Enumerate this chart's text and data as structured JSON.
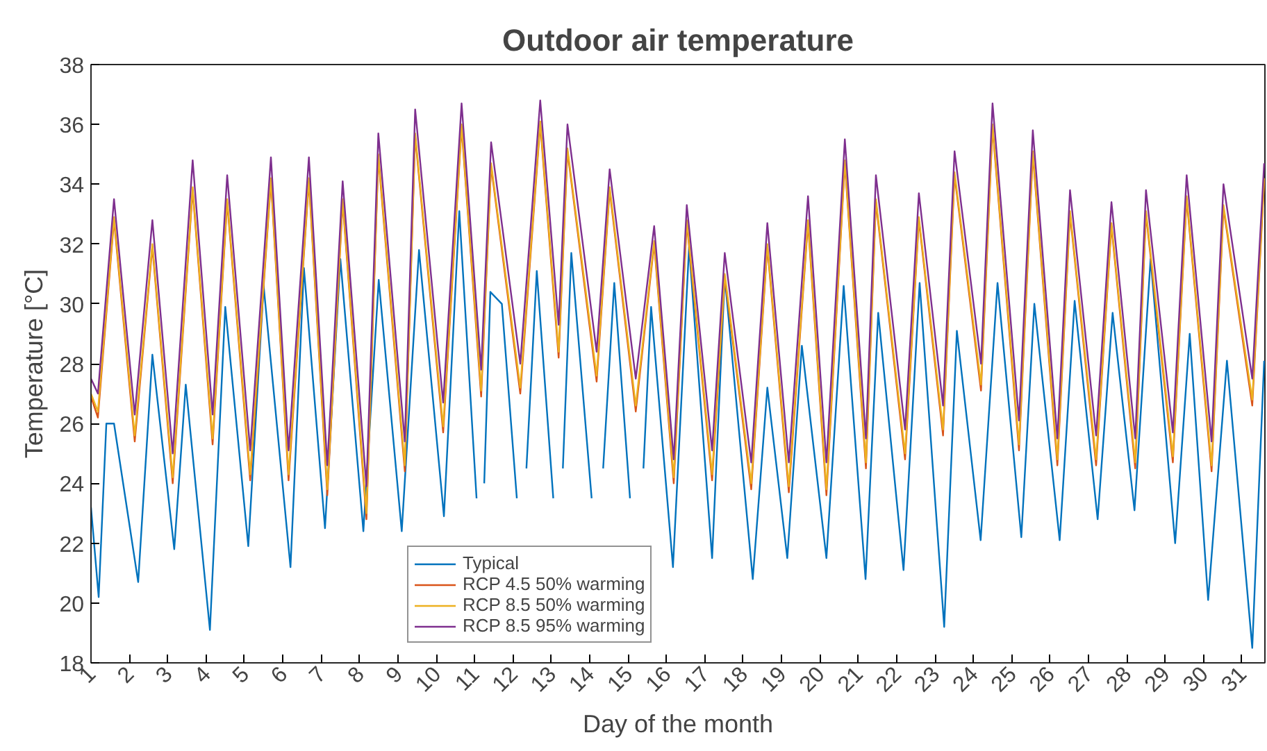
{
  "chart_data": {
    "type": "line",
    "title": "Outdoor air temperature",
    "xlabel": "Day of the month",
    "ylabel": "Temperature [°C]",
    "xlim": [
      1,
      31.6
    ],
    "xticks": [
      1,
      2,
      3,
      4,
      5,
      6,
      7,
      8,
      9,
      10,
      11,
      12,
      13,
      14,
      15,
      16,
      17,
      18,
      19,
      20,
      21,
      22,
      23,
      24,
      25,
      26,
      27,
      28,
      29,
      30,
      31
    ],
    "ylim": [
      18,
      38
    ],
    "yticks": [
      18,
      20,
      22,
      24,
      26,
      28,
      30,
      32,
      34,
      36,
      38
    ],
    "grid": false,
    "legend": "bottom",
    "marker": "none",
    "line_style": "solid",
    "series": [
      {
        "name": "Typical",
        "color": "#0072bd",
        "x": [
          1.0,
          1.2,
          1.4,
          1.6,
          2.23,
          2.6,
          3.17,
          3.47,
          4.1,
          4.5,
          5.1,
          5.5,
          6.2,
          6.55,
          7.1,
          7.5,
          8.1,
          8.5,
          9.1,
          9.55,
          10.2,
          10.6,
          11.05,
          11.12,
          11.25,
          11.41,
          11.71,
          12.1,
          12.2,
          12.35,
          12.62,
          13.05,
          13.15,
          13.3,
          13.52,
          14.05,
          14.2,
          14.35,
          14.64,
          15.05,
          15.2,
          15.4,
          15.6,
          16.17,
          16.59,
          17.19,
          17.52,
          18.25,
          18.63,
          19.15,
          19.53,
          20.17,
          20.62,
          21.19,
          21.52,
          22.18,
          22.6,
          23.24,
          23.57,
          24.19,
          24.63,
          25.25,
          25.59,
          26.25,
          26.64,
          27.24,
          27.63,
          28.2,
          28.62,
          29.26,
          29.64,
          30.12,
          30.61,
          31.27,
          31.58
        ],
        "values": [
          23.2,
          20.2,
          26.0,
          26.0,
          20.7,
          28.3,
          21.8,
          27.3,
          19.1,
          29.9,
          21.9,
          30.6,
          21.2,
          31.2,
          22.5,
          31.5,
          22.4,
          30.8,
          22.4,
          31.8,
          22.9,
          33.1,
          23.5,
          null,
          24.0,
          30.4,
          30.0,
          23.5,
          null,
          24.5,
          31.1,
          23.5,
          null,
          24.5,
          31.7,
          23.5,
          null,
          24.5,
          30.7,
          23.5,
          null,
          24.5,
          29.9,
          21.2,
          31.9,
          21.5,
          30.9,
          20.8,
          27.2,
          21.5,
          28.6,
          21.5,
          30.6,
          20.8,
          29.7,
          21.1,
          30.7,
          19.2,
          29.1,
          22.1,
          30.7,
          22.2,
          30.0,
          22.1,
          30.1,
          22.8,
          29.7,
          23.1,
          31.5,
          22.0,
          29.0,
          20.1,
          28.1,
          18.5,
          28.1
        ]
      },
      {
        "name": "RCP 4.5 50% warming",
        "color": "#d95319",
        "x": [
          1.0,
          1.18,
          1.6,
          2.14,
          2.6,
          3.13,
          3.65,
          4.17,
          4.55,
          5.15,
          5.69,
          6.15,
          6.68,
          7.16,
          7.56,
          8.18,
          8.49,
          9.18,
          9.45,
          10.18,
          10.66,
          11.17,
          11.43,
          12.19,
          12.71,
          13.19,
          13.42,
          14.18,
          14.52,
          15.2,
          15.68,
          16.19,
          16.53,
          17.19,
          17.52,
          18.21,
          18.63,
          19.19,
          19.69,
          20.17,
          20.65,
          21.2,
          21.46,
          22.22,
          22.58,
          23.21,
          23.51,
          24.2,
          24.5,
          25.19,
          25.55,
          26.19,
          26.52,
          27.2,
          27.6,
          28.22,
          28.5,
          29.2,
          29.56,
          30.21,
          30.52,
          31.27,
          31.58
        ],
        "values": [
          26.9,
          26.2,
          32.8,
          25.4,
          31.9,
          24.0,
          33.8,
          25.3,
          33.4,
          24.1,
          34.1,
          24.1,
          34.1,
          23.6,
          33.4,
          22.8,
          34.9,
          24.4,
          35.6,
          25.7,
          35.9,
          26.9,
          34.6,
          27.0,
          36.0,
          28.2,
          35.1,
          27.4,
          33.8,
          26.4,
          32.0,
          24.0,
          32.7,
          24.1,
          30.9,
          23.8,
          31.9,
          23.7,
          32.7,
          23.6,
          34.7,
          24.5,
          33.4,
          24.8,
          32.8,
          25.6,
          34.3,
          27.1,
          35.9,
          25.1,
          35.0,
          24.6,
          33.0,
          24.6,
          32.6,
          24.5,
          33.0,
          24.7,
          33.5,
          24.4,
          33.2,
          26.6,
          34.1
        ]
      },
      {
        "name": "RCP 8.5 50% warming",
        "color": "#edb120",
        "x": [
          1.0,
          1.18,
          1.6,
          2.14,
          2.6,
          3.13,
          3.65,
          4.17,
          4.55,
          5.15,
          5.69,
          6.15,
          6.68,
          7.16,
          7.56,
          8.18,
          8.49,
          9.18,
          9.45,
          10.18,
          10.66,
          11.17,
          11.43,
          12.19,
          12.71,
          13.19,
          13.42,
          14.18,
          14.52,
          15.2,
          15.68,
          16.19,
          16.53,
          17.19,
          17.52,
          18.21,
          18.63,
          19.19,
          19.69,
          20.17,
          20.65,
          21.2,
          21.46,
          22.22,
          22.58,
          23.21,
          23.51,
          24.2,
          24.5,
          25.19,
          25.55,
          26.19,
          26.52,
          27.2,
          27.6,
          28.22,
          28.5,
          29.2,
          29.56,
          30.21,
          30.52,
          31.27,
          31.58
        ],
        "values": [
          27.0,
          26.4,
          32.9,
          25.6,
          32.0,
          24.2,
          33.9,
          25.5,
          33.5,
          24.3,
          34.2,
          24.3,
          34.2,
          23.8,
          33.5,
          23.0,
          35.0,
          24.6,
          35.7,
          25.9,
          36.0,
          27.1,
          34.7,
          27.2,
          36.1,
          28.4,
          35.2,
          27.6,
          33.9,
          26.6,
          32.1,
          24.2,
          32.8,
          24.3,
          31.0,
          24.0,
          32.0,
          23.9,
          32.8,
          23.8,
          34.8,
          24.7,
          33.5,
          25.0,
          32.9,
          25.8,
          34.4,
          27.3,
          36.0,
          25.3,
          35.1,
          24.8,
          33.1,
          24.8,
          32.7,
          24.7,
          33.1,
          24.9,
          33.6,
          24.6,
          33.3,
          26.8,
          34.2
        ]
      },
      {
        "name": "RCP 8.5 95% warming",
        "color": "#7e2f8e",
        "x": [
          1.0,
          1.18,
          1.6,
          2.14,
          2.6,
          3.13,
          3.65,
          4.17,
          4.55,
          5.15,
          5.69,
          6.15,
          6.68,
          7.16,
          7.56,
          8.18,
          8.49,
          9.18,
          9.45,
          10.18,
          10.66,
          11.17,
          11.43,
          12.19,
          12.71,
          13.19,
          13.42,
          14.18,
          14.52,
          15.2,
          15.68,
          16.19,
          16.53,
          17.19,
          17.52,
          18.21,
          18.63,
          19.19,
          19.69,
          20.17,
          20.65,
          21.2,
          21.46,
          22.22,
          22.58,
          23.21,
          23.51,
          24.2,
          24.5,
          25.19,
          25.55,
          26.19,
          26.52,
          27.2,
          27.6,
          28.22,
          28.5,
          29.2,
          29.56,
          30.21,
          30.52,
          31.27,
          31.58
        ],
        "values": [
          27.5,
          27.0,
          33.5,
          26.3,
          32.8,
          25.0,
          34.8,
          26.3,
          34.3,
          25.1,
          34.9,
          25.1,
          34.9,
          24.6,
          34.1,
          23.9,
          35.7,
          25.4,
          36.5,
          26.7,
          36.7,
          27.8,
          35.4,
          28.0,
          36.8,
          29.3,
          36.0,
          28.4,
          34.5,
          27.5,
          32.6,
          24.8,
          33.3,
          25.1,
          31.7,
          24.7,
          32.7,
          24.7,
          33.6,
          24.7,
          35.5,
          25.5,
          34.3,
          25.8,
          33.7,
          26.6,
          35.1,
          28.0,
          36.7,
          26.1,
          35.8,
          25.5,
          33.8,
          25.6,
          33.4,
          25.5,
          33.8,
          25.7,
          34.3,
          25.4,
          34.0,
          27.5,
          34.7
        ]
      }
    ]
  }
}
